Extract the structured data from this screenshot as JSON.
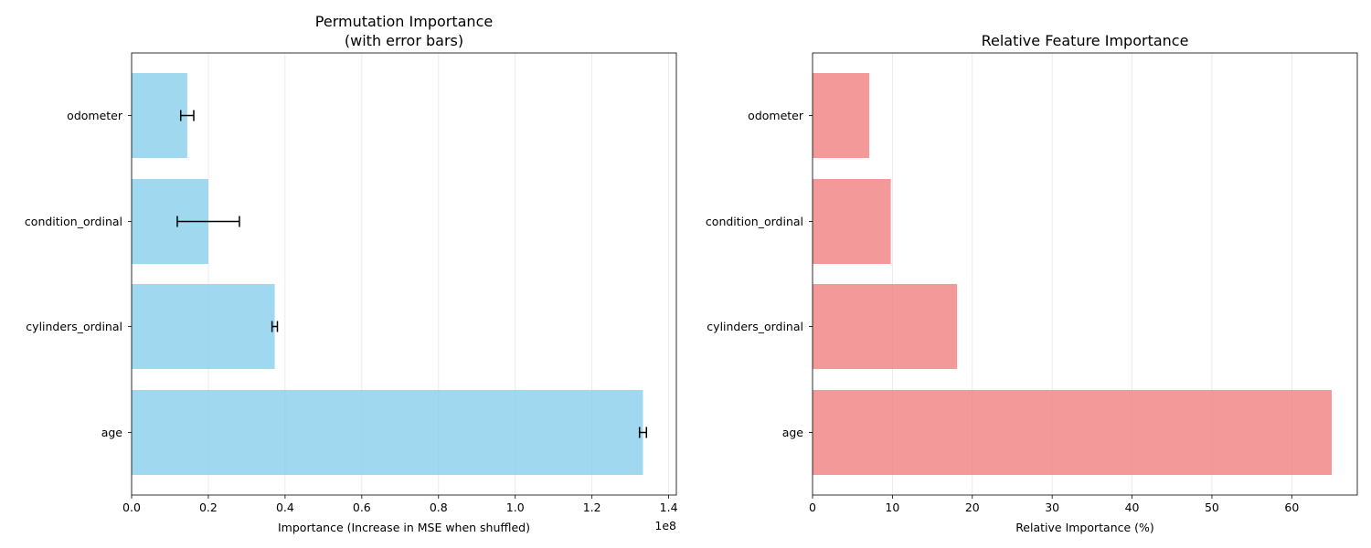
{
  "chart_data": [
    {
      "type": "bar",
      "orientation": "horizontal",
      "title_lines": [
        "Permutation Importance",
        "(with error bars)"
      ],
      "xlabel": "Importance (Increase in MSE when shuffled)",
      "ylabel": "",
      "axis_offset_label": "1e8",
      "categories": [
        "odometer",
        "condition_ordinal",
        "cylinders_ordinal",
        "age"
      ],
      "values": [
        0.145,
        0.2,
        0.373,
        1.333
      ],
      "errors": [
        0.017,
        0.081,
        0.007,
        0.009
      ],
      "xlim": [
        0,
        1.42
      ],
      "xticks": [
        "0.0",
        "0.2",
        "0.4",
        "0.6",
        "0.8",
        "1.0",
        "1.2",
        "1.4"
      ],
      "value_scale": "x1e8",
      "bar_color": "#87CEEB",
      "error_color": "#000000",
      "grid": "vertical"
    },
    {
      "type": "bar",
      "orientation": "horizontal",
      "title_lines": [
        "Relative Feature Importance"
      ],
      "xlabel": "Relative Importance (%)",
      "ylabel": "",
      "categories": [
        "odometer",
        "condition_ordinal",
        "cylinders_ordinal",
        "age"
      ],
      "values": [
        7.1,
        9.8,
        18.1,
        65.0
      ],
      "xlim": [
        0,
        68.2
      ],
      "xticks": [
        "0",
        "10",
        "20",
        "30",
        "40",
        "50",
        "60"
      ],
      "bar_color": "#F08080",
      "grid": "vertical"
    }
  ]
}
